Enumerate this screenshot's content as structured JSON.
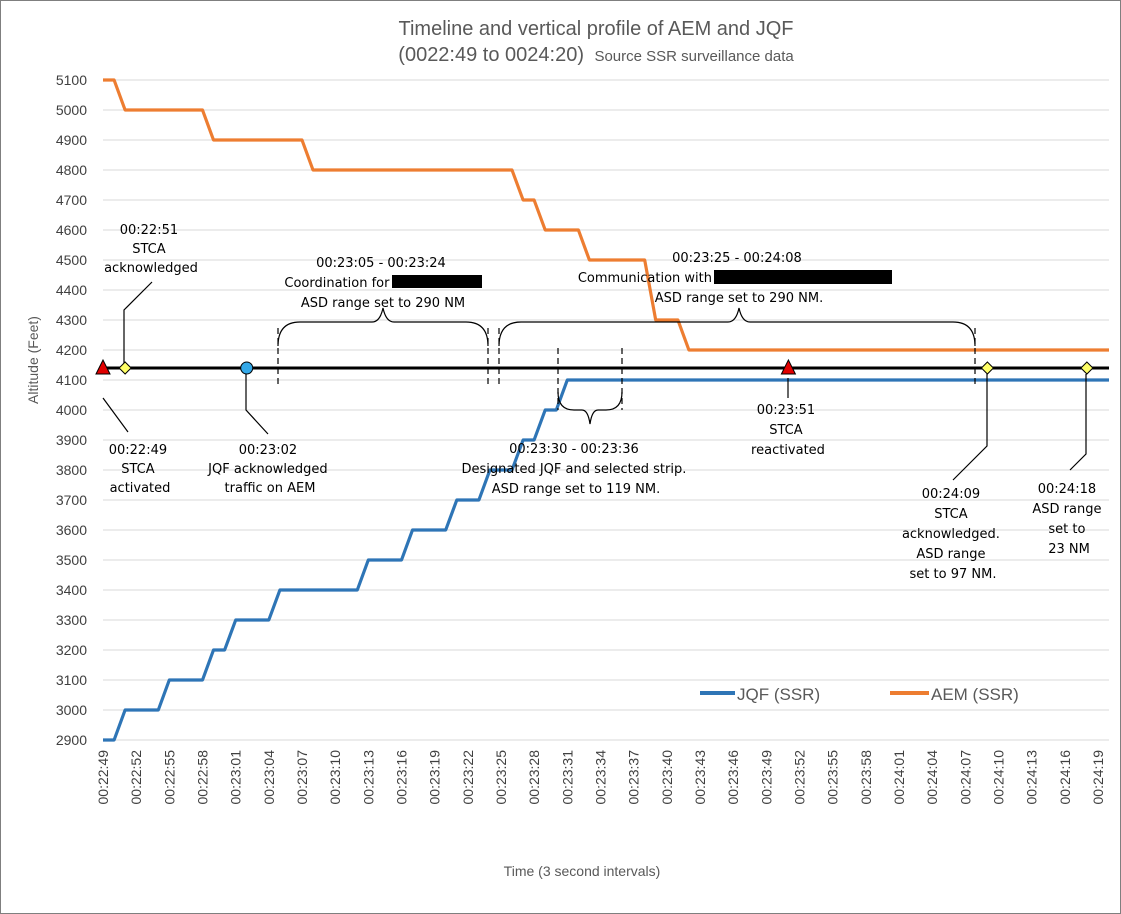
{
  "chart_data": {
    "type": "line",
    "title": "Timeline and vertical profile of AEM and JQF",
    "subtitle_time": "(0022:49 to 0024:20)",
    "subtitle_source": "Source SSR surveillance data",
    "xlabel": "Time  (3 second intervals)",
    "ylabel": "Altitude (Feet)",
    "ylim": [
      2900,
      5100
    ],
    "yticks": [
      2900,
      3000,
      3100,
      3200,
      3300,
      3400,
      3500,
      3600,
      3700,
      3800,
      3900,
      4000,
      4100,
      4200,
      4300,
      4400,
      4500,
      4600,
      4700,
      4800,
      4900,
      5000,
      5100
    ],
    "x_start": "00:22:49",
    "x_end": "00:24:20",
    "x_tick_labels": [
      "00:22:49",
      "00:22:52",
      "00:22:55",
      "00:22:58",
      "00:23:01",
      "00:23:04",
      "00:23:07",
      "00:23:10",
      "00:23:13",
      "00:23:16",
      "00:23:19",
      "00:23:22",
      "00:23:25",
      "00:23:28",
      "00:23:31",
      "00:23:34",
      "00:23:37",
      "00:23:40",
      "00:23:43",
      "00:23:46",
      "00:23:49",
      "00:23:52",
      "00:23:55",
      "00:23:58",
      "00:24:01",
      "00:24:04",
      "00:24:07",
      "00:24:10",
      "00:24:13",
      "00:24:16",
      "00:24:19"
    ],
    "grid": true,
    "legend_position": "bottom-right",
    "series": [
      {
        "name": "JQF (SSR)",
        "color": "#2e75b6",
        "points": [
          [
            "00:22:49",
            2900
          ],
          [
            "00:22:50",
            2900
          ],
          [
            "00:22:51",
            3000
          ],
          [
            "00:22:54",
            3000
          ],
          [
            "00:22:55",
            3100
          ],
          [
            "00:22:58",
            3100
          ],
          [
            "00:22:59",
            3200
          ],
          [
            "00:23:00",
            3200
          ],
          [
            "00:23:01",
            3300
          ],
          [
            "00:23:04",
            3300
          ],
          [
            "00:23:05",
            3400
          ],
          [
            "00:23:12",
            3400
          ],
          [
            "00:23:13",
            3500
          ],
          [
            "00:23:16",
            3500
          ],
          [
            "00:23:17",
            3600
          ],
          [
            "00:23:20",
            3600
          ],
          [
            "00:23:21",
            3700
          ],
          [
            "00:23:23",
            3700
          ],
          [
            "00:23:24",
            3800
          ],
          [
            "00:23:26",
            3800
          ],
          [
            "00:23:27",
            3900
          ],
          [
            "00:23:28",
            3900
          ],
          [
            "00:23:29",
            4000
          ],
          [
            "00:23:30",
            4000
          ],
          [
            "00:23:31",
            4100
          ],
          [
            "00:24:20",
            4100
          ]
        ]
      },
      {
        "name": "AEM (SSR)",
        "color": "#ed7d31",
        "points": [
          [
            "00:22:49",
            5100
          ],
          [
            "00:22:50",
            5100
          ],
          [
            "00:22:51",
            5000
          ],
          [
            "00:22:58",
            5000
          ],
          [
            "00:22:59",
            4900
          ],
          [
            "00:23:07",
            4900
          ],
          [
            "00:23:08",
            4800
          ],
          [
            "00:23:26",
            4800
          ],
          [
            "00:23:27",
            4700
          ],
          [
            "00:23:28",
            4700
          ],
          [
            "00:23:29",
            4600
          ],
          [
            "00:23:32",
            4600
          ],
          [
            "00:23:33",
            4500
          ],
          [
            "00:23:38",
            4500
          ],
          [
            "00:23:39",
            4300
          ],
          [
            "00:23:41",
            4300
          ],
          [
            "00:23:42",
            4200
          ],
          [
            "00:24:20",
            4200
          ]
        ]
      }
    ],
    "timeline": {
      "altitude": 4140,
      "markers": [
        {
          "time": "00:22:49",
          "shape": "triangle",
          "color": "#e00000"
        },
        {
          "time": "00:22:51",
          "shape": "diamond",
          "color": "#ffff66"
        },
        {
          "time": "00:23:02",
          "shape": "circle",
          "color": "#33a8e8"
        },
        {
          "time": "00:23:51",
          "shape": "triangle",
          "color": "#e00000"
        },
        {
          "time": "00:24:09",
          "shape": "diamond",
          "color": "#ffff66"
        },
        {
          "time": "00:24:18",
          "shape": "diamond",
          "color": "#ffff66"
        }
      ]
    },
    "annotations": [
      {
        "id": "ann_2251",
        "lines": [
          "00:22:51",
          "STCA",
          "acknowledged"
        ]
      },
      {
        "id": "ann_2249",
        "lines": [
          "00:22:49",
          "STCA",
          "activated"
        ]
      },
      {
        "id": "ann_2302",
        "lines": [
          "00:23:02",
          "JQF acknowledged",
          "traffic on AEM"
        ]
      },
      {
        "id": "ann_coord",
        "lines": [
          "00:23:05 - 00:23:24",
          "Coordination for",
          "ASD range set to 290 NM"
        ]
      },
      {
        "id": "ann_comm",
        "lines": [
          "00:23:25 - 00:24:08",
          "Communication with",
          "ASD range set to 290 NM."
        ]
      },
      {
        "id": "ann_desig",
        "lines": [
          "00:23:30 - 00:23:36",
          "Designated JQF and selected strip.",
          "ASD range set to 119 NM."
        ]
      },
      {
        "id": "ann_2351",
        "lines": [
          "00:23:51",
          "STCA",
          "reactivated"
        ]
      },
      {
        "id": "ann_2409",
        "lines": [
          "00:24:09",
          "STCA",
          "acknowledged.",
          "ASD range",
          "set to 97 NM."
        ]
      },
      {
        "id": "ann_2418",
        "lines": [
          "00:24:18",
          "ASD range",
          "set to",
          "23 NM"
        ]
      }
    ]
  }
}
